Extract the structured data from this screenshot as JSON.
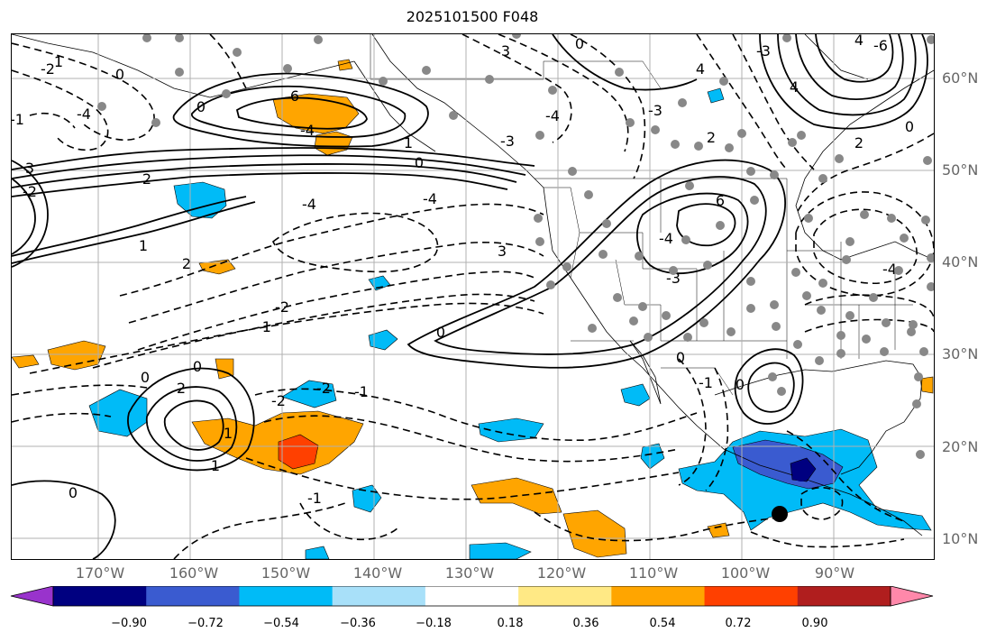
{
  "title": "2025101500 F048",
  "lat_labels": [
    "60°N",
    "50°N",
    "40°N",
    "30°N",
    "20°N",
    "10°N"
  ],
  "lon_labels": [
    "170°W",
    "160°W",
    "150°W",
    "140°W",
    "130°W",
    "120°W",
    "110°W",
    "100°W",
    "90°W"
  ],
  "contour_labels": [
    "0",
    "2",
    "3",
    "1",
    "0",
    "-4",
    "6",
    "-4",
    "-4",
    "-2",
    "-1",
    "0",
    "-2",
    "-4",
    "-3",
    "3",
    "0",
    "-4",
    "-3",
    "4",
    "-3",
    "4",
    "6",
    "-4",
    "-3",
    "3",
    "-1",
    "0",
    "2",
    "1",
    "0",
    "-2",
    "-1",
    "-4",
    "-6",
    "4",
    "2",
    "2",
    "0",
    "-1",
    "-2",
    "1",
    "2",
    "1",
    "0",
    "0",
    "-1",
    "1",
    "0",
    "0",
    "-2"
  ],
  "colorbar": {
    "tick_labels": [
      "−0.90",
      "−0.72",
      "−0.54",
      "−0.36",
      "−0.18",
      "0.18",
      "0.36",
      "0.54",
      "0.72",
      "0.90"
    ],
    "colors": [
      "#9933cc",
      "#000080",
      "#3a5bd0",
      "#00bbf7",
      "#a8e0f9",
      "#ffffff",
      "#ffe985",
      "#ffa500",
      "#ff4000",
      "#b01e1e",
      "#ff88aa"
    ]
  }
}
